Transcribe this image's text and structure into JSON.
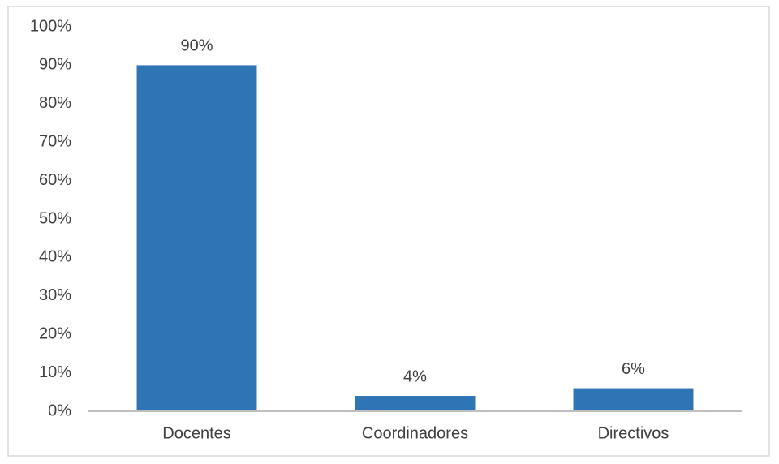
{
  "chart_data": {
    "type": "bar",
    "categories": [
      "Docentes",
      "Coordinadores",
      "Directivos"
    ],
    "values": [
      90,
      4,
      6
    ],
    "value_labels": [
      "90%",
      "4%",
      "6%"
    ],
    "color": "#2e75b6",
    "ylim": [
      0,
      100
    ],
    "yticks": [
      {
        "value": 0,
        "label": "0%"
      },
      {
        "value": 10,
        "label": "10%"
      },
      {
        "value": 20,
        "label": "20%"
      },
      {
        "value": 30,
        "label": "30%"
      },
      {
        "value": 40,
        "label": "40%"
      },
      {
        "value": 50,
        "label": "50%"
      },
      {
        "value": 60,
        "label": "60%"
      },
      {
        "value": 70,
        "label": "70%"
      },
      {
        "value": 80,
        "label": "80%"
      },
      {
        "value": 90,
        "label": "90%"
      },
      {
        "value": 100,
        "label": "100%"
      }
    ],
    "grid": false
  }
}
